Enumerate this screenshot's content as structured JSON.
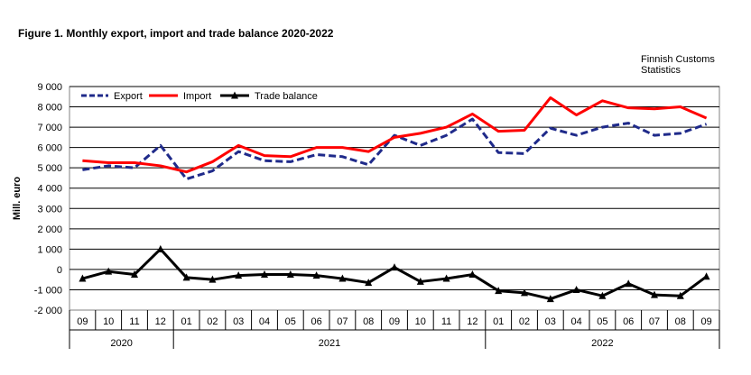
{
  "figure_title": "Figure  1. Monthly  export, import and trade balance 2020-2022",
  "source": [
    "Finnish Customs",
    "Statistics"
  ],
  "colors": {
    "export": "#1f2a8a",
    "import": "#ff0000",
    "balance": "#000000",
    "grid": "#000000"
  },
  "chart_data": {
    "type": "line",
    "title": "",
    "ylabel": "Mill. euro",
    "xlabel": "",
    "ylim": [
      -2000,
      9000
    ],
    "yticks": [
      -2000,
      -1000,
      0,
      1000,
      2000,
      3000,
      4000,
      5000,
      6000,
      7000,
      8000,
      9000
    ],
    "ytick_labels": [
      "-2 000",
      "-1 000",
      "0",
      "1 000",
      "2 000",
      "3 000",
      "4 000",
      "5 000",
      "6 000",
      "7 000",
      "8 000",
      "9 000"
    ],
    "categories": [
      "09",
      "10",
      "11",
      "12",
      "01",
      "02",
      "03",
      "04",
      "05",
      "06",
      "07",
      "08",
      "09",
      "10",
      "11",
      "12",
      "01",
      "02",
      "03",
      "04",
      "05",
      "06",
      "07",
      "08",
      "09"
    ],
    "year_groups": [
      {
        "label": "2020",
        "count": 4
      },
      {
        "label": "2021",
        "count": 12
      },
      {
        "label": "2022",
        "count": 9
      }
    ],
    "legend_position": "top-left",
    "grid": "horizontal",
    "series": [
      {
        "name": "Export",
        "key": "export",
        "style": "dashed",
        "values": [
          4900,
          5100,
          5000,
          6100,
          4450,
          4850,
          5800,
          5350,
          5300,
          5650,
          5550,
          5150,
          6600,
          6100,
          6600,
          7400,
          5750,
          5700,
          6950,
          6600,
          7000,
          7200,
          6600,
          6700,
          7150
        ]
      },
      {
        "name": "Import",
        "key": "import",
        "style": "solid",
        "values": [
          5350,
          5250,
          5250,
          5100,
          4800,
          5300,
          6100,
          5600,
          5550,
          6000,
          6000,
          5800,
          6500,
          6700,
          7000,
          7650,
          6800,
          6850,
          8450,
          7600,
          8300,
          7950,
          7900,
          8000,
          7450
        ]
      },
      {
        "name": "Trade balance",
        "key": "balance",
        "style": "solid-marker",
        "values": [
          -450,
          -100,
          -250,
          1000,
          -400,
          -500,
          -300,
          -250,
          -250,
          -300,
          -450,
          -650,
          100,
          -600,
          -450,
          -250,
          -1050,
          -1150,
          -1450,
          -1000,
          -1300,
          -700,
          -1250,
          -1300,
          -350
        ]
      }
    ]
  }
}
